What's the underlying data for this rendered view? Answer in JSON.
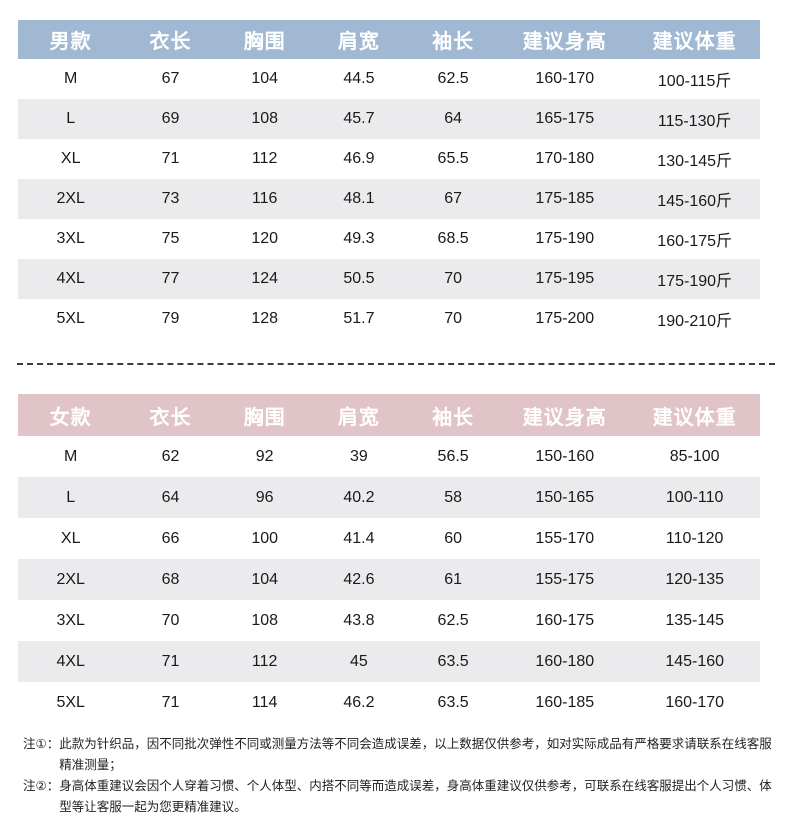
{
  "colors": {
    "men_header_bg": "#a0b8d1",
    "women_header_bg": "#e0c4c8",
    "header_text": "#ffffff",
    "row_stripe_bg": "#ebebee",
    "body_text": "#1a1a1a",
    "divider": "#3c3c3c"
  },
  "tables": {
    "men": {
      "header_bg": "#a0b8d1",
      "header_text_color": "#ffffff",
      "stripe_bg": "#ebebee",
      "columns": [
        "男款",
        "衣长",
        "胸围",
        "肩宽",
        "袖长",
        "建议身高",
        "建议体重"
      ],
      "rows": [
        [
          "M",
          "67",
          "104",
          "44.5",
          "62.5",
          "160-170",
          "100-115斤"
        ],
        [
          "L",
          "69",
          "108",
          "45.7",
          "64",
          "165-175",
          "115-130斤"
        ],
        [
          "XL",
          "71",
          "112",
          "46.9",
          "65.5",
          "170-180",
          "130-145斤"
        ],
        [
          "2XL",
          "73",
          "116",
          "48.1",
          "67",
          "175-185",
          "145-160斤"
        ],
        [
          "3XL",
          "75",
          "120",
          "49.3",
          "68.5",
          "175-190",
          "160-175斤"
        ],
        [
          "4XL",
          "77",
          "124",
          "50.5",
          "70",
          "175-195",
          "175-190斤"
        ],
        [
          "5XL",
          "79",
          "128",
          "51.7",
          "70",
          "175-200",
          "190-210斤"
        ]
      ]
    },
    "women": {
      "header_bg": "#e0c4c8",
      "header_text_color": "#ffffff",
      "stripe_bg": "#ebebee",
      "columns": [
        "女款",
        "衣长",
        "胸围",
        "肩宽",
        "袖长",
        "建议身高",
        "建议体重"
      ],
      "rows": [
        [
          "M",
          "62",
          "92",
          "39",
          "56.5",
          "150-160",
          "85-100"
        ],
        [
          "L",
          "64",
          "96",
          "40.2",
          "58",
          "150-165",
          "100-110"
        ],
        [
          "XL",
          "66",
          "100",
          "41.4",
          "60",
          "155-170",
          "110-120"
        ],
        [
          "2XL",
          "68",
          "104",
          "42.6",
          "61",
          "155-175",
          "120-135"
        ],
        [
          "3XL",
          "70",
          "108",
          "43.8",
          "62.5",
          "160-175",
          "135-145"
        ],
        [
          "4XL",
          "71",
          "112",
          "45",
          "63.5",
          "160-180",
          "145-160"
        ],
        [
          "5XL",
          "71",
          "114",
          "46.2",
          "63.5",
          "160-185",
          "160-170"
        ]
      ]
    }
  },
  "notes": [
    {
      "label": "注①：",
      "text": "此款为针织品，因不同批次弹性不同或测量方法等不同会造成误差，以上数据仅供参考，如对实际成品有严格要求请联系在线客服精准测量；"
    },
    {
      "label": "注②：",
      "text": "身高体重建议会因个人穿着习惯、个人体型、内搭不同等而造成误差，身高体重建议仅供参考，可联系在线客服提出个人习惯、体型等让客服一起为您更精准建议。"
    }
  ]
}
